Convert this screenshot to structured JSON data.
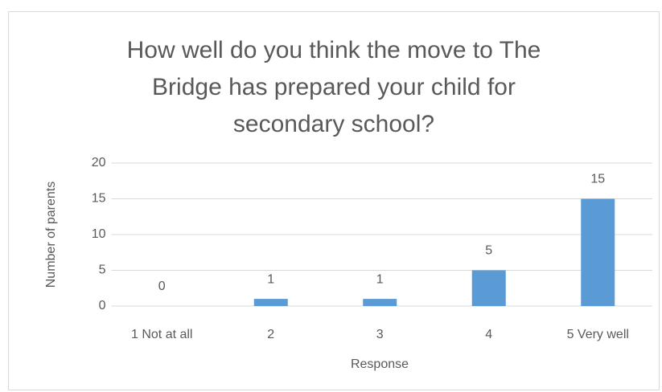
{
  "chart_data": {
    "type": "bar",
    "title": "How well do you think the move to The Bridge has prepared your child for secondary school?",
    "x_label": "Response",
    "y_label": "Number of parents",
    "categories": [
      "1 Not at all",
      "2",
      "3",
      "4",
      "5 Very well"
    ],
    "values": [
      0,
      1,
      1,
      5,
      15
    ],
    "color": "#5b9bd5",
    "ylim": [
      0,
      20
    ],
    "yticks": [
      0,
      5,
      10,
      15,
      20
    ],
    "grid": true
  }
}
